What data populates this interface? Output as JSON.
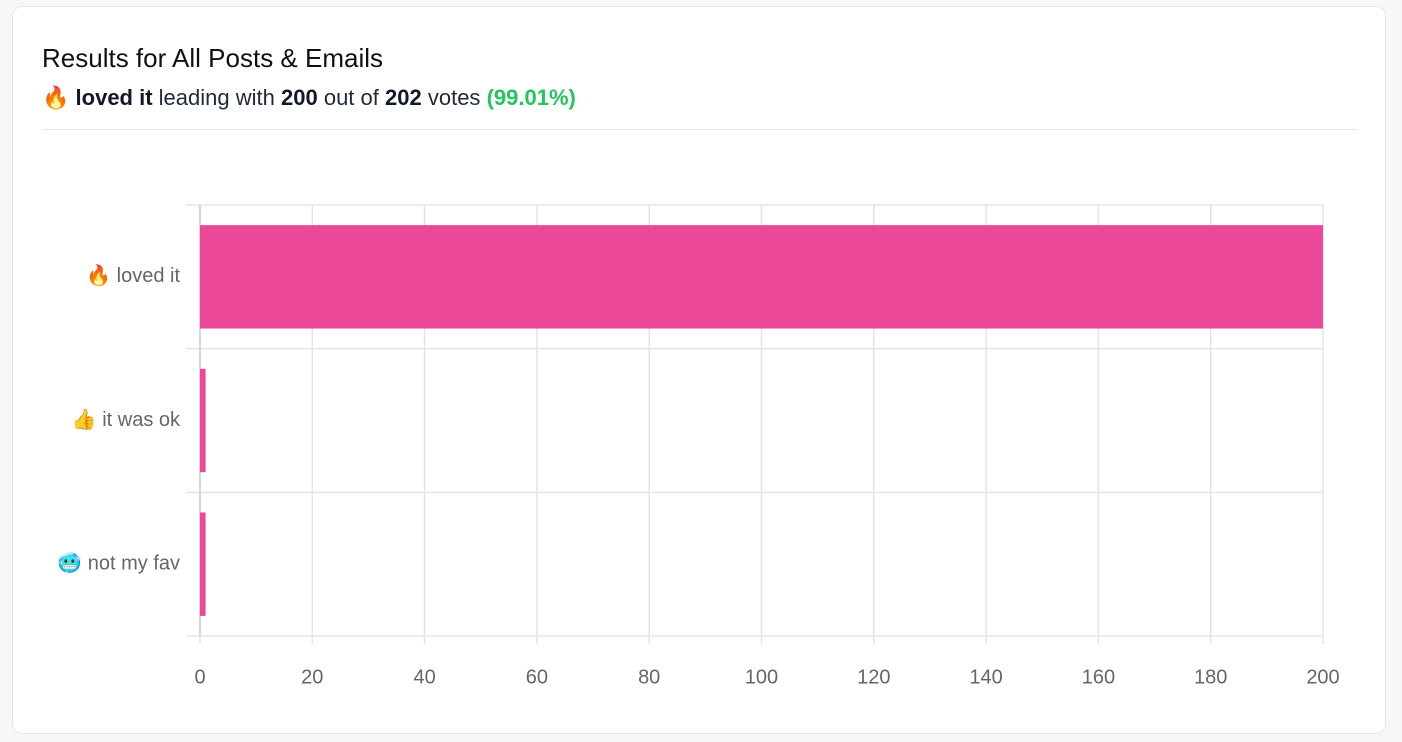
{
  "chart_data": {
    "type": "hbar",
    "title": "Results for All Posts & Emails",
    "subtitle": [
      "🔥",
      "loved it",
      "leading with",
      "200",
      "out of",
      "202",
      "votes",
      "(99.01%)"
    ],
    "categories": [
      "🔥 loved it",
      "👍 it was ok",
      "🥶 not my fav"
    ],
    "values": [
      200,
      1,
      1
    ],
    "color": "#ec4899",
    "xlim": [
      0,
      200
    ],
    "xticks": [
      0,
      20,
      40,
      60,
      80,
      100,
      120,
      140,
      160,
      180,
      200
    ],
    "grid": true
  }
}
